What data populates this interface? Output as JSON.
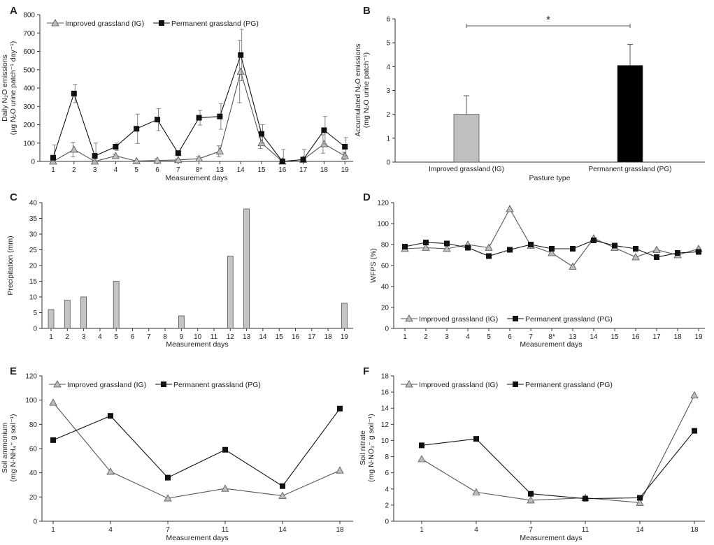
{
  "chart_data": [
    {
      "panel_label": "A",
      "type": "line",
      "xlabel": "Measurement days",
      "ylabel_lines": [
        "Daily N₂O emissions",
        "(µg N₂O urine patch⁻¹ day⁻¹)"
      ],
      "categories": [
        "1",
        "2",
        "3",
        "4",
        "5",
        "6",
        "7",
        "8*",
        "13",
        "14",
        "15",
        "16",
        "17",
        "18",
        "19"
      ],
      "ylim": [
        0,
        800
      ],
      "yticks": [
        0,
        100,
        200,
        300,
        400,
        500,
        600,
        700,
        800
      ],
      "legend": "top-left",
      "series": [
        {
          "name": "Improved grassland  (IG)",
          "marker": "triangle",
          "values": [
            0,
            65,
            0,
            30,
            2,
            5,
            8,
            15,
            55,
            490,
            100,
            0,
            10,
            95,
            30
          ],
          "errors": [
            0,
            40,
            0,
            10,
            0,
            10,
            5,
            10,
            30,
            170,
            30,
            0,
            10,
            50,
            20
          ]
        },
        {
          "name": "Permanent grassland  (PG)",
          "marker": "square",
          "values": [
            20,
            370,
            30,
            80,
            178,
            228,
            45,
            238,
            245,
            580,
            150,
            0,
            10,
            170,
            80
          ],
          "errors": [
            70,
            50,
            70,
            20,
            80,
            60,
            10,
            40,
            70,
            140,
            50,
            65,
            55,
            75,
            50
          ]
        }
      ]
    },
    {
      "panel_label": "B",
      "type": "bar",
      "xlabel": "Pasture type",
      "ylabel_lines": [
        "Accumulated N₂O emissions",
        "(mg N₂O urine patch⁻¹)"
      ],
      "categories": [
        "Improved grassland  (IG)",
        "Permanent grassland  (PG)"
      ],
      "values": [
        2.0,
        4.05
      ],
      "errors": [
        0.78,
        0.88
      ],
      "colors": [
        "#c0c0c0",
        "#000000"
      ],
      "ylim": [
        0,
        6
      ],
      "yticks": [
        0,
        1,
        2,
        3,
        4,
        5,
        6
      ],
      "significance": "*"
    },
    {
      "panel_label": "C",
      "type": "bar",
      "xlabel": "Measurement days",
      "ylabel_lines": [
        "Precipitation (mm)"
      ],
      "categories": [
        "1",
        "2",
        "3",
        "4",
        "5",
        "6",
        "7",
        "8",
        "9",
        "10",
        "11",
        "12",
        "13",
        "14",
        "15",
        "16",
        "17",
        "18",
        "19"
      ],
      "values": [
        6,
        9,
        10,
        0,
        15,
        0,
        0,
        0,
        4,
        0,
        0,
        23,
        38,
        0,
        0,
        0,
        0,
        0,
        8
      ],
      "ylim": [
        0,
        40
      ],
      "yticks": [
        0,
        5,
        10,
        15,
        20,
        25,
        30,
        35,
        40
      ]
    },
    {
      "panel_label": "D",
      "type": "line",
      "xlabel": "Measurement days",
      "ylabel_lines": [
        "WFPS (%)"
      ],
      "categories": [
        "1",
        "2",
        "3",
        "4",
        "5",
        "6",
        "7",
        "8*",
        "13",
        "14",
        "15",
        "16",
        "17",
        "18",
        "19"
      ],
      "ylim": [
        0,
        120
      ],
      "yticks": [
        0,
        20,
        40,
        60,
        80,
        100,
        120
      ],
      "legend": "bottom-left",
      "series": [
        {
          "name": "Improved grassland   (IG)",
          "marker": "triangle",
          "values": [
            76,
            77,
            76,
            80,
            77,
            114,
            79,
            72,
            59,
            86,
            77,
            68,
            75,
            70,
            76
          ]
        },
        {
          "name": "Permanent grassland   (PG)",
          "marker": "square",
          "values": [
            78,
            82,
            81,
            77,
            69,
            75,
            80,
            76,
            76,
            84,
            79,
            76,
            68,
            72,
            73
          ]
        }
      ]
    },
    {
      "panel_label": "E",
      "type": "line",
      "xlabel": "Measurement days",
      "ylabel_lines": [
        "Soil ammonium",
        "(mg N-NH₄⁺ g soil⁻¹)"
      ],
      "categories": [
        "1",
        "4",
        "7",
        "11",
        "14",
        "18"
      ],
      "ylim": [
        0,
        120
      ],
      "yticks": [
        0,
        20,
        40,
        60,
        80,
        100,
        120
      ],
      "legend": "top-left",
      "series": [
        {
          "name": "Improved grassland  (IG)",
          "marker": "triangle",
          "values": [
            98,
            41,
            19,
            27,
            21,
            42
          ]
        },
        {
          "name": "Permanent grassland  (PG)",
          "marker": "square",
          "values": [
            67,
            87,
            36,
            59,
            29,
            93
          ]
        }
      ]
    },
    {
      "panel_label": "F",
      "type": "line",
      "xlabel": "Measurement days",
      "ylabel_lines": [
        "Soil nitrate",
        "(mg N-NO₃⁻ g soil⁻¹)"
      ],
      "categories": [
        "1",
        "4",
        "7",
        "11",
        "14",
        "18"
      ],
      "ylim": [
        0,
        18
      ],
      "yticks": [
        0,
        2,
        4,
        6,
        8,
        10,
        12,
        14,
        16,
        18
      ],
      "legend": "top-left",
      "series": [
        {
          "name": "Improved grassland  (IG)",
          "marker": "triangle",
          "values": [
            7.7,
            3.6,
            2.6,
            2.9,
            2.3,
            15.6
          ]
        },
        {
          "name": "Permanent grassland  (PG)",
          "marker": "square",
          "values": [
            9.4,
            10.2,
            3.4,
            2.8,
            2.9,
            11.2
          ]
        }
      ]
    }
  ]
}
